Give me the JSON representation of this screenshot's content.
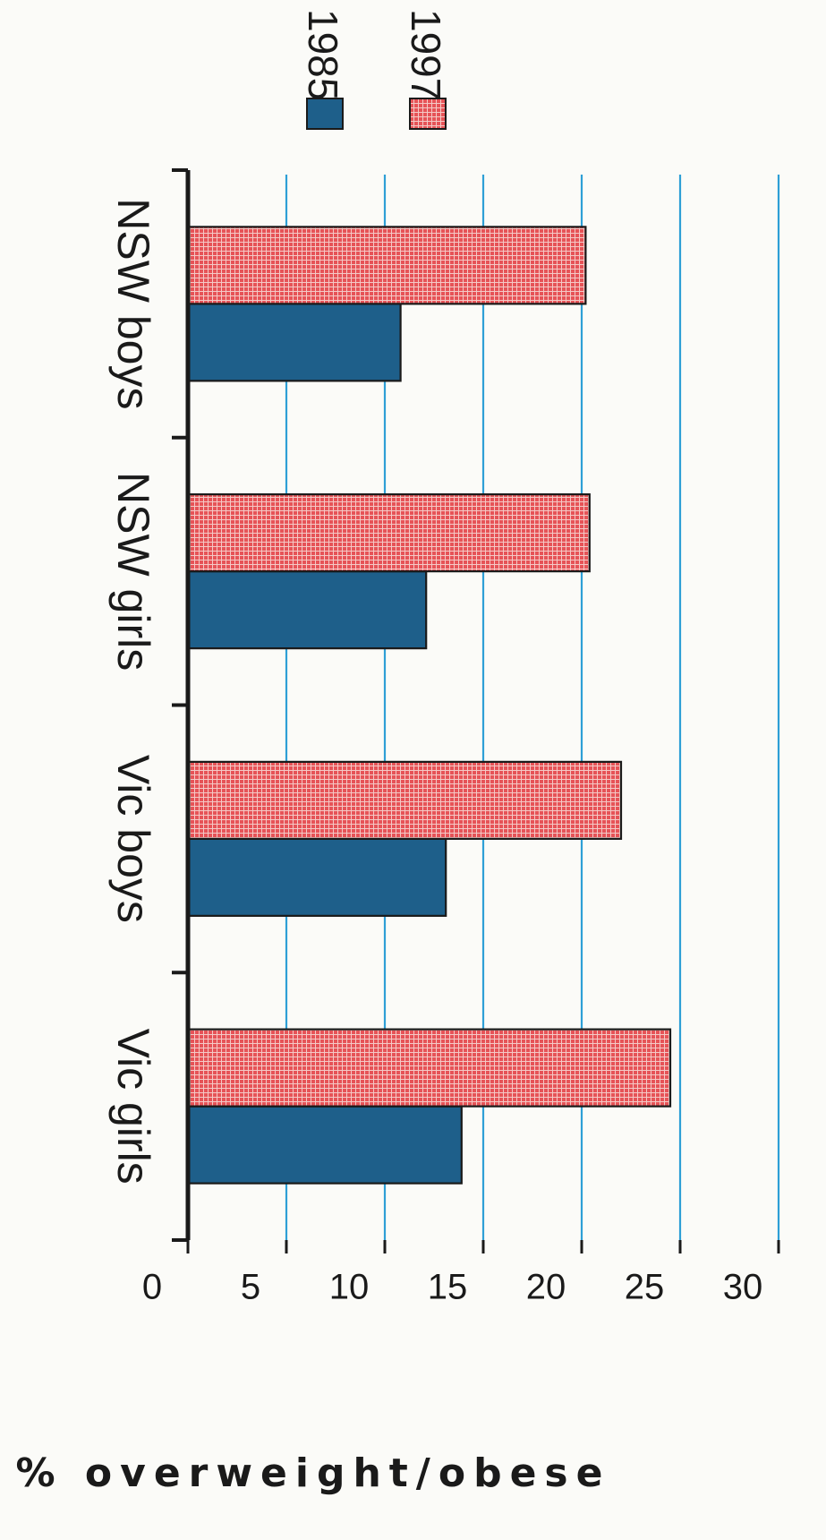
{
  "chart_data": {
    "type": "bar",
    "orientation": "vertical, page rotated 90 degrees clockwise",
    "categories": [
      "NSW boys",
      "NSW girls",
      "Vic boys",
      "Vic girls"
    ],
    "series": [
      {
        "name": "1985",
        "values": [
          10.8,
          12.1,
          13.1,
          13.9
        ],
        "color": "#1e5f8a"
      },
      {
        "name": "1997",
        "values": [
          20.2,
          20.4,
          22.0,
          24.5
        ],
        "color": "#e24a4e"
      }
    ],
    "ylabel": "% overweight/obese",
    "yticks": [
      "0",
      "5",
      "10",
      "15",
      "20",
      "25",
      "30"
    ],
    "ylim": [
      0,
      30
    ],
    "grid": true,
    "grid_color": "#2e9fd6",
    "legend_placement": "top-right"
  }
}
